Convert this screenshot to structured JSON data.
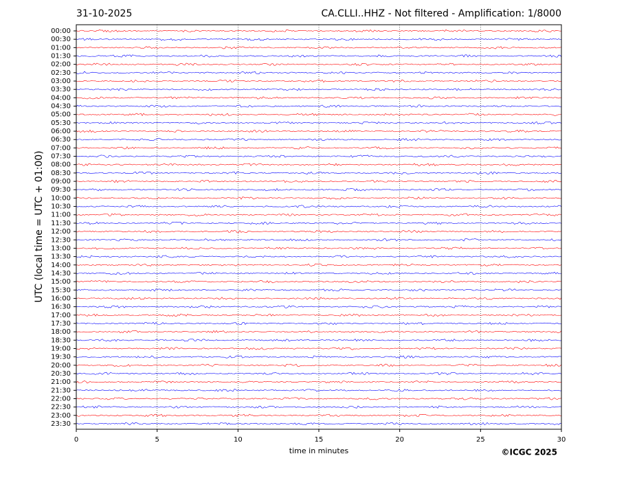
{
  "chart_data": {
    "type": "helicorder",
    "date": "31-10-2025",
    "title": "CA.CLLI..HHZ - Not filtered - Amplification: 1/8000",
    "xlabel": "time in minutes",
    "ylabel": "UTC (local time = UTC + 01:00)",
    "credit": "©ICGC 2025",
    "xlim": [
      0,
      30
    ],
    "xticks": [
      0,
      5,
      10,
      15,
      20,
      25,
      30
    ],
    "grid": true,
    "colors": [
      "#ff0000",
      "#0000ff"
    ],
    "categories": [
      "00:00",
      "00:30",
      "01:00",
      "01:30",
      "02:00",
      "02:30",
      "03:00",
      "03:30",
      "04:00",
      "04:30",
      "05:00",
      "05:30",
      "06:00",
      "06:30",
      "07:00",
      "07:30",
      "08:00",
      "08:30",
      "09:00",
      "09:30",
      "10:00",
      "10:30",
      "11:00",
      "11:30",
      "12:00",
      "12:30",
      "13:00",
      "13:30",
      "14:00",
      "14:30",
      "15:00",
      "15:30",
      "16:00",
      "16:30",
      "17:00",
      "17:30",
      "18:00",
      "18:30",
      "19:00",
      "19:30",
      "20:00",
      "20:30",
      "21:00",
      "21:30",
      "22:00",
      "22:30",
      "23:00",
      "23:30"
    ]
  }
}
